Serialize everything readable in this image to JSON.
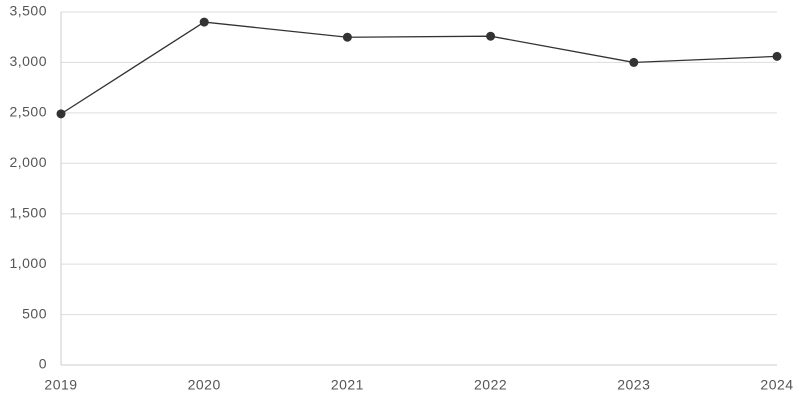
{
  "chart_data": {
    "type": "line",
    "categories": [
      "2019",
      "2020",
      "2021",
      "2022",
      "2023",
      "2024"
    ],
    "series": [
      {
        "color": "#333333",
        "values": [
          2490,
          3400,
          3250,
          3260,
          3000,
          3060
        ]
      }
    ],
    "ylim": [
      0,
      3500
    ],
    "yticks": [
      0,
      500,
      {
        "value": 1000,
        "label": "1,000"
      },
      {
        "value": 1500,
        "label": "1,500"
      },
      {
        "value": 2000,
        "label": "2,000"
      },
      {
        "value": 2500,
        "label": "2,500"
      },
      {
        "value": 3000,
        "label": "3,000"
      },
      {
        "value": 3500,
        "label": "3,500"
      }
    ],
    "grid": true
  }
}
